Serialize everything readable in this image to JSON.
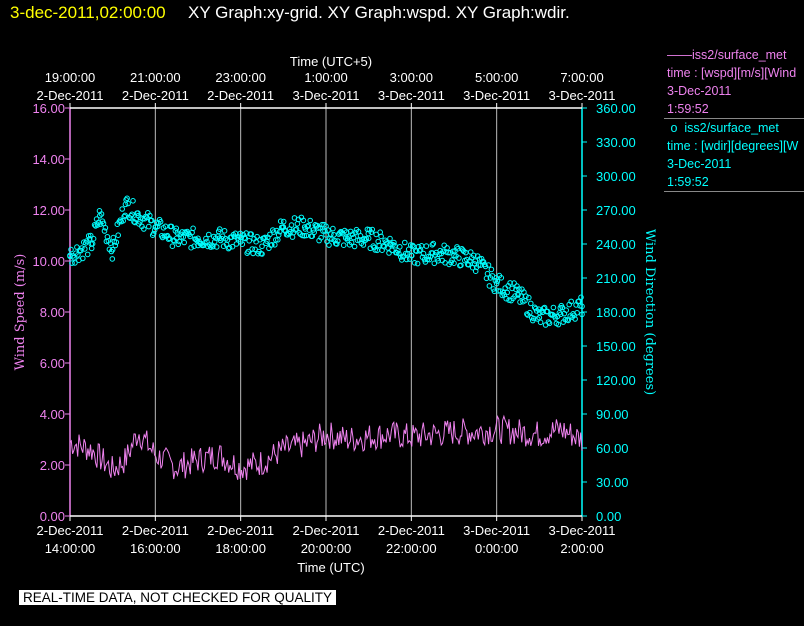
{
  "header": {
    "date": "3-dec-2011,02:00:00",
    "title": "XY Graph:xy-grid.  XY Graph:wspd.  XY Graph:wdir."
  },
  "legend": {
    "wspd": {
      "name": "iss2/surface_met",
      "desc": "time : [wspd][m/s][Wind",
      "date": "3-Dec-2011",
      "time": "1:59:52",
      "color": "#ee82ee"
    },
    "wdir": {
      "name": "iss2/surface_met",
      "desc": "time : [wdir][degrees][W",
      "date": "3-Dec-2011",
      "time": "1:59:52",
      "color": "#00ffff"
    }
  },
  "disclaimer": "REAL-TIME DATA, NOT CHECKED FOR QUALITY",
  "chart_data": {
    "type": "line",
    "xlabel_bottom": "Time (UTC)",
    "xlabel_top": "Time (UTC+5)",
    "ylabel_left": "Wind Speed (m/s)",
    "ylabel_right": "Wind Direction (degrees)",
    "x_range": [
      "2-Dec-2011 14:00:00",
      "3-Dec-2011 02:00:00"
    ],
    "ylim_left": [
      0,
      16
    ],
    "ylim_right": [
      0,
      360
    ],
    "grid": "vertical lines at 2-hour ticks",
    "bottom_ticks": [
      {
        "date": "2-Dec-2011",
        "time": "14:00:00"
      },
      {
        "date": "2-Dec-2011",
        "time": "16:00:00"
      },
      {
        "date": "2-Dec-2011",
        "time": "18:00:00"
      },
      {
        "date": "2-Dec-2011",
        "time": "20:00:00"
      },
      {
        "date": "2-Dec-2011",
        "time": "22:00:00"
      },
      {
        "date": "3-Dec-2011",
        "time": "0:00:00"
      },
      {
        "date": "3-Dec-2011",
        "time": "2:00:00"
      }
    ],
    "top_ticks": [
      {
        "time": "19:00:00",
        "date": "2-Dec-2011"
      },
      {
        "time": "21:00:00",
        "date": "2-Dec-2011"
      },
      {
        "time": "23:00:00",
        "date": "2-Dec-2011"
      },
      {
        "time": "1:00:00",
        "date": "3-Dec-2011"
      },
      {
        "time": "3:00:00",
        "date": "3-Dec-2011"
      },
      {
        "time": "5:00:00",
        "date": "3-Dec-2011"
      },
      {
        "time": "7:00:00",
        "date": "3-Dec-2011"
      }
    ],
    "left_ticks": [
      "0.00",
      "2.00",
      "4.00",
      "6.00",
      "8.00",
      "10.00",
      "12.00",
      "14.00",
      "16.00"
    ],
    "right_ticks": [
      "0.00",
      "30.00",
      "60.00",
      "90.00",
      "120.00",
      "150.00",
      "180.00",
      "210.00",
      "240.00",
      "270.00",
      "300.00",
      "330.00",
      "360.00"
    ],
    "series": [
      {
        "name": "iss2/surface_met [wspd]",
        "axis": "left",
        "color": "#ee82ee",
        "style": "line",
        "x_hours_utc": [
          14.0,
          14.5,
          15.0,
          15.3,
          15.6,
          16.0,
          16.5,
          17.0,
          17.5,
          18.0,
          18.5,
          19.0,
          19.5,
          20.0,
          20.5,
          21.0,
          21.5,
          22.0,
          22.5,
          23.0,
          23.5,
          24.0,
          24.5,
          25.0,
          25.5,
          26.0
        ],
        "values": [
          2.9,
          2.6,
          1.8,
          2.2,
          3.3,
          2.4,
          1.9,
          2.2,
          2.4,
          1.9,
          2.1,
          2.6,
          2.8,
          3.2,
          3.0,
          3.1,
          3.2,
          3.1,
          3.2,
          3.3,
          3.3,
          3.4,
          3.3,
          3.2,
          3.4,
          3.0
        ]
      },
      {
        "name": "iss2/surface_met [wdir]",
        "axis": "right",
        "color": "#00ffff",
        "style": "markers",
        "x_hours_utc": [
          14.0,
          14.5,
          14.7,
          15.0,
          15.3,
          15.6,
          16.0,
          16.5,
          17.0,
          17.5,
          18.0,
          18.5,
          19.0,
          19.5,
          20.0,
          20.5,
          21.0,
          21.5,
          22.0,
          22.5,
          23.0,
          23.5,
          24.0,
          24.5,
          25.0,
          25.5,
          26.0
        ],
        "values": [
          230,
          240,
          265,
          235,
          275,
          265,
          255,
          245,
          245,
          245,
          242,
          238,
          255,
          255,
          248,
          245,
          245,
          240,
          230,
          232,
          230,
          225,
          205,
          195,
          175,
          178,
          185
        ]
      }
    ]
  }
}
